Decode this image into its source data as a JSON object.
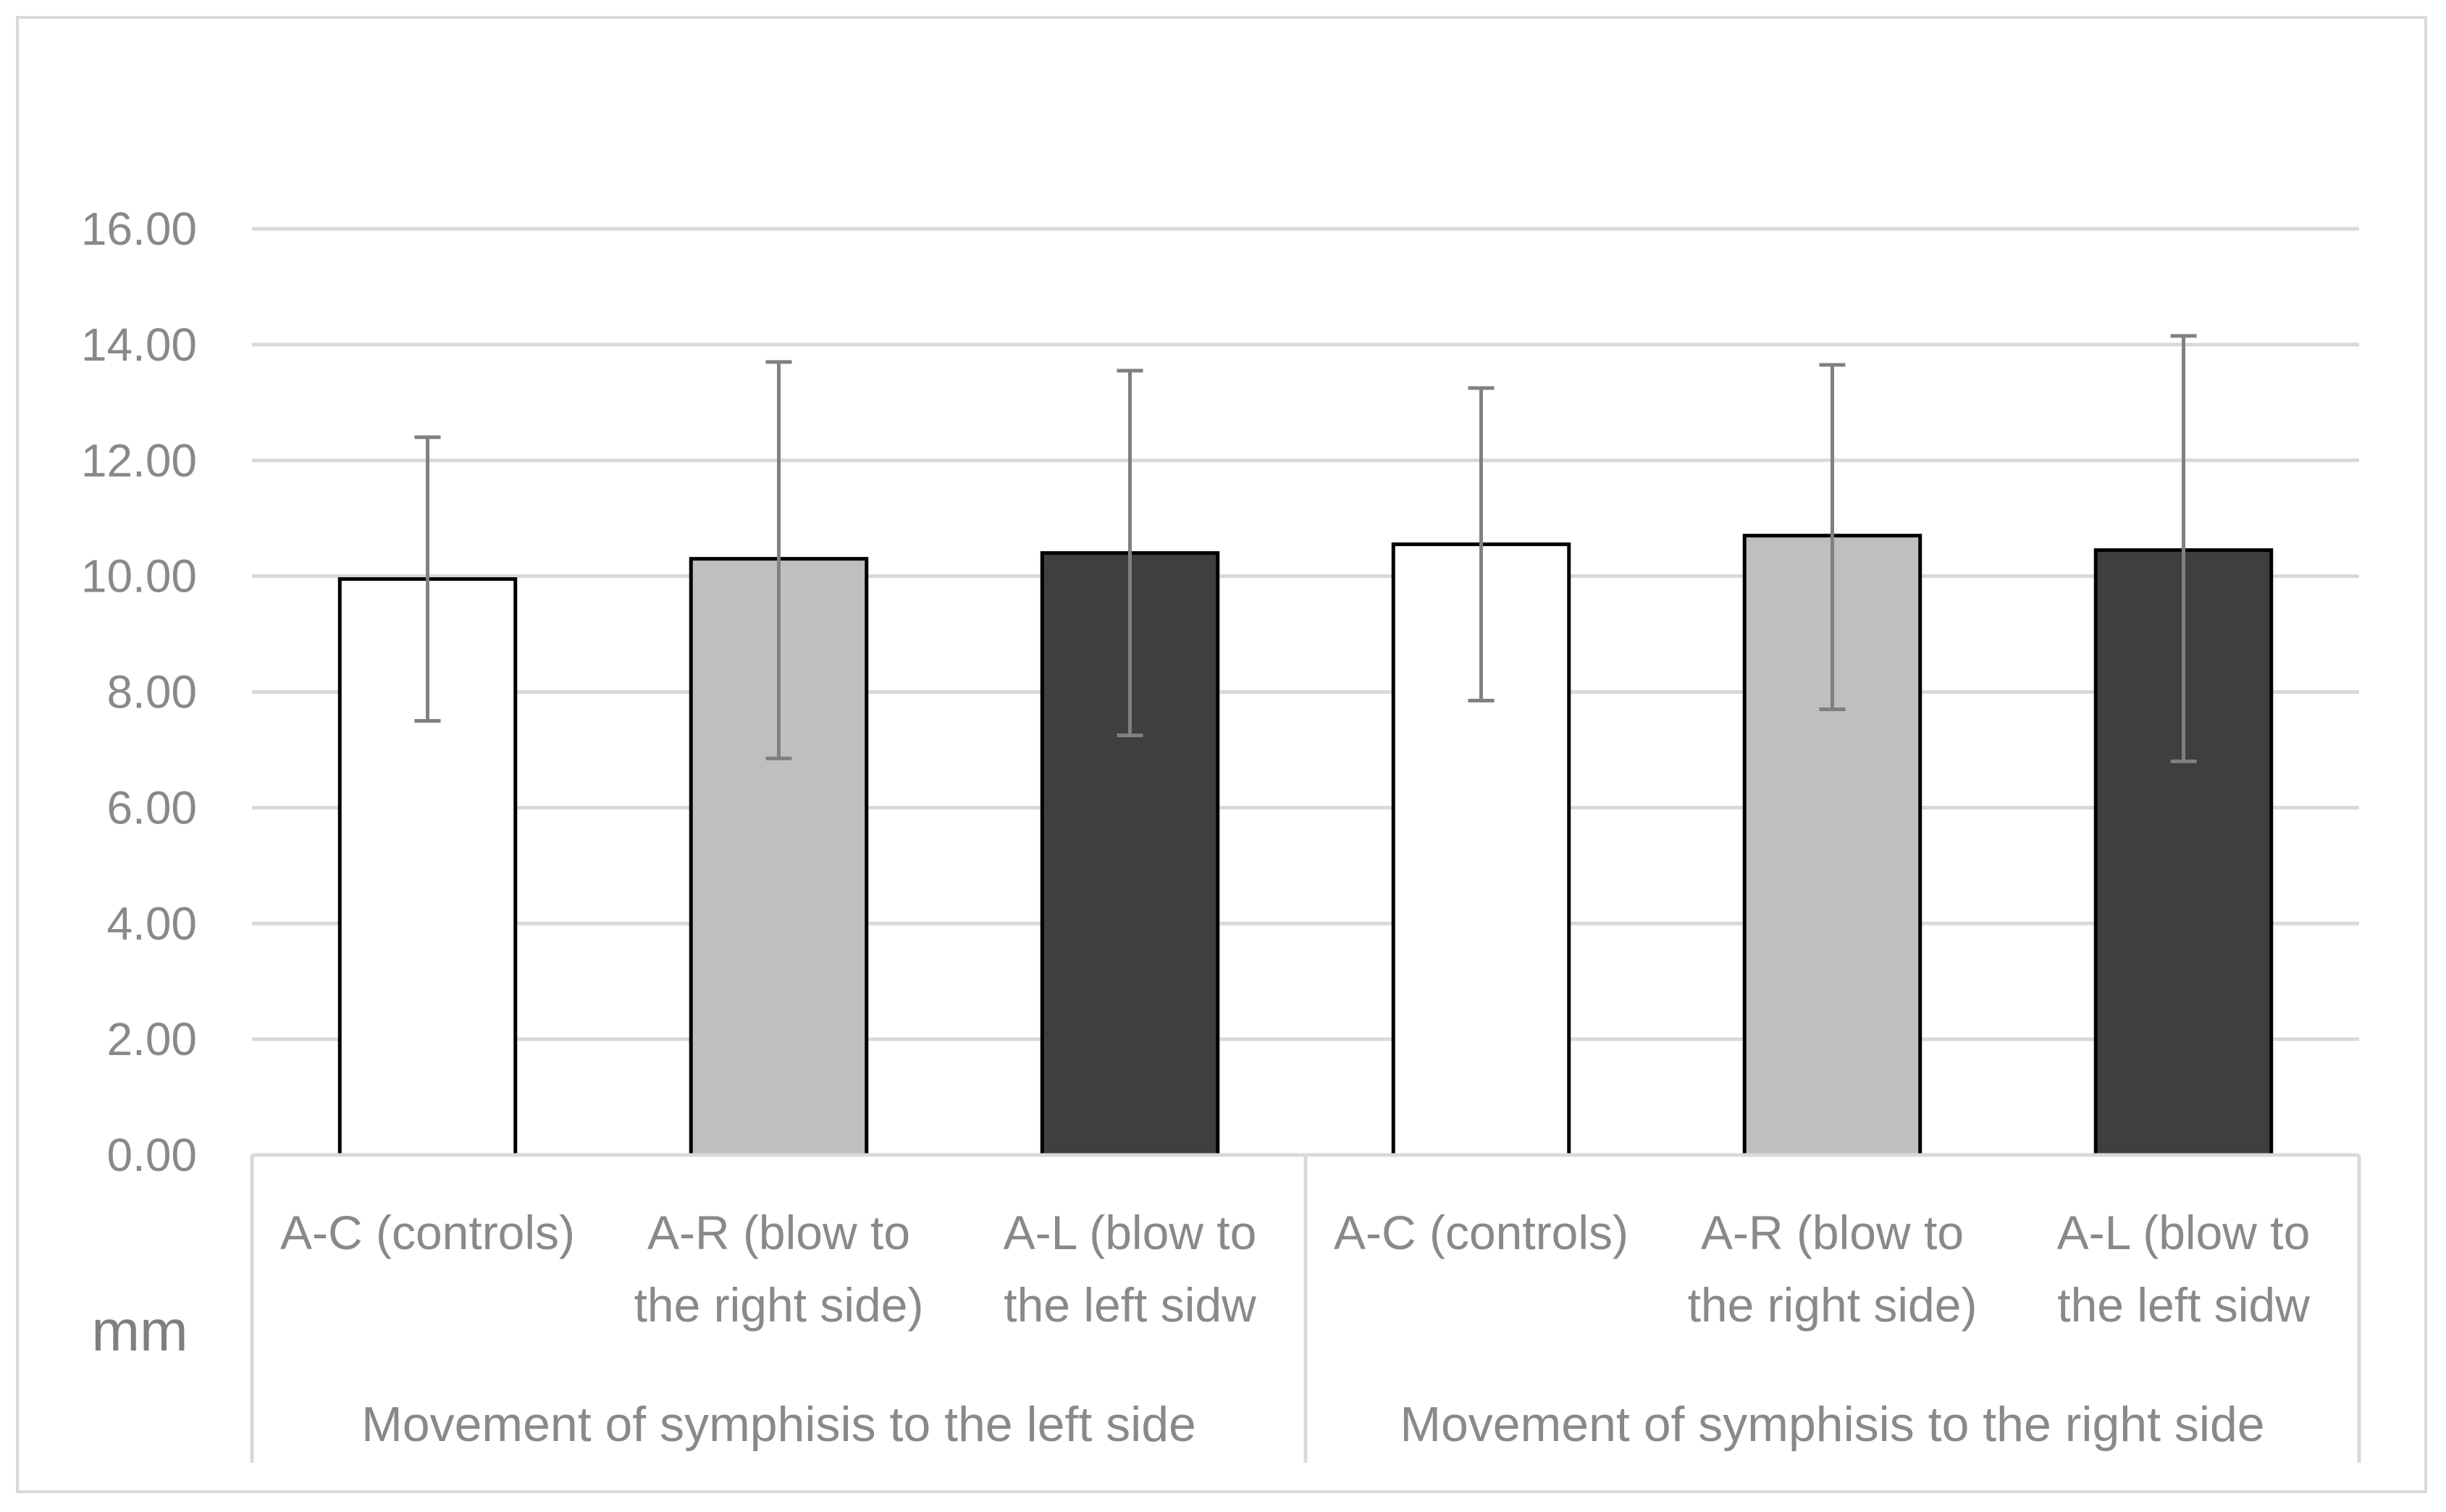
{
  "chart_data": {
    "type": "bar",
    "title": "",
    "xlabel": "",
    "ylabel": "mm",
    "ylim": [
      0,
      16
    ],
    "ytick_step": 2,
    "ytick_labels": [
      "0.00",
      "2.00",
      "4.00",
      "6.00",
      "8.00",
      "10.00",
      "12.00",
      "14.00",
      "16.00"
    ],
    "grid": true,
    "legend": "none",
    "groups": [
      {
        "label": "Movement of symphisis to the left side",
        "categories": [
          {
            "label_lines": [
              "A-C (controls)"
            ],
            "value": 9.95,
            "error_low": 7.5,
            "error_high": 12.4,
            "color": "#ffffff"
          },
          {
            "label_lines": [
              "A-R (blow to",
              "the right side)"
            ],
            "value": 10.3,
            "error_low": 6.85,
            "error_high": 13.7,
            "color": "#bfbfbf"
          },
          {
            "label_lines": [
              "A-L (blow to",
              "the left sidw"
            ],
            "value": 10.4,
            "error_low": 7.25,
            "error_high": 13.55,
            "color": "#3f3f3f"
          }
        ]
      },
      {
        "label": "Movement of symphisis to the right side",
        "categories": [
          {
            "label_lines": [
              "A-C (controls)"
            ],
            "value": 10.55,
            "error_low": 7.85,
            "error_high": 13.25,
            "color": "#ffffff"
          },
          {
            "label_lines": [
              "A-R (blow to",
              "the right side)"
            ],
            "value": 10.7,
            "error_low": 7.7,
            "error_high": 13.65,
            "color": "#bfbfbf"
          },
          {
            "label_lines": [
              "A-L (blow to",
              "the left sidw"
            ],
            "value": 10.45,
            "error_low": 6.8,
            "error_high": 14.15,
            "color": "#3f3f3f"
          }
        ]
      }
    ]
  }
}
